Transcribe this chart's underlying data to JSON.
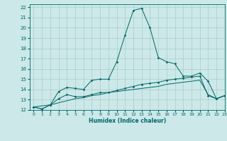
{
  "title": "",
  "xlabel": "Humidex (Indice chaleur)",
  "ylabel": "",
  "background_color": "#cce8e8",
  "grid_color": "#aacccc",
  "line_color": "#006666",
  "xlim": [
    -0.5,
    23
  ],
  "ylim": [
    12,
    22.3
  ],
  "yticks": [
    12,
    13,
    14,
    15,
    16,
    17,
    18,
    19,
    20,
    21,
    22
  ],
  "xticks": [
    0,
    1,
    2,
    3,
    4,
    5,
    6,
    7,
    8,
    9,
    10,
    11,
    12,
    13,
    14,
    15,
    16,
    17,
    18,
    19,
    20,
    21,
    22,
    23
  ],
  "series1_x": [
    0,
    1,
    2,
    3,
    4,
    5,
    6,
    7,
    8,
    9,
    10,
    11,
    12,
    13,
    14,
    15,
    16,
    17,
    18,
    19,
    20,
    21,
    22,
    23
  ],
  "series1_y": [
    12.3,
    12.1,
    12.5,
    13.8,
    14.2,
    14.1,
    14.0,
    14.9,
    15.0,
    15.0,
    16.7,
    19.3,
    21.7,
    21.9,
    20.0,
    17.1,
    16.7,
    16.5,
    15.3,
    15.3,
    15.6,
    14.8,
    13.1,
    13.4
  ],
  "series2_x": [
    0,
    1,
    2,
    3,
    4,
    5,
    6,
    7,
    8,
    9,
    10,
    11,
    12,
    13,
    14,
    15,
    16,
    17,
    18,
    19,
    20,
    21,
    22,
    23
  ],
  "series2_y": [
    12.3,
    12.1,
    12.5,
    13.1,
    13.5,
    13.3,
    13.3,
    13.5,
    13.7,
    13.7,
    13.9,
    14.1,
    14.3,
    14.5,
    14.6,
    14.7,
    14.9,
    15.0,
    15.1,
    15.2,
    15.3,
    13.4,
    13.1,
    13.4
  ],
  "series3_x": [
    0,
    1,
    2,
    3,
    4,
    5,
    6,
    7,
    8,
    9,
    10,
    11,
    12,
    13,
    14,
    15,
    16,
    17,
    18,
    19,
    20,
    21,
    22,
    23
  ],
  "series3_y": [
    12.3,
    12.4,
    12.5,
    12.7,
    12.9,
    13.1,
    13.2,
    13.4,
    13.5,
    13.7,
    13.8,
    13.9,
    14.0,
    14.1,
    14.2,
    14.3,
    14.5,
    14.6,
    14.7,
    14.8,
    14.9,
    13.5,
    13.1,
    13.4
  ]
}
